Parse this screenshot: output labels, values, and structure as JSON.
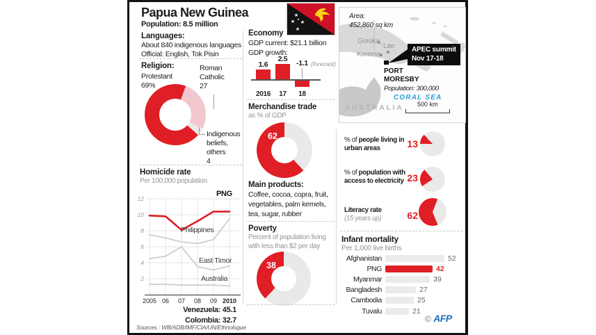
{
  "colors": {
    "red": "#e01e25",
    "pink": "#f2c7ce",
    "light": "#e9e9e9",
    "line_gray": "#cdcdcd",
    "grid": "#e3e3e3",
    "sea_blue": "#2ba0d8",
    "afp_blue": "#1a6fc4"
  },
  "header": {
    "title": "Papua New Guinea",
    "population": "Population: 8.5 million"
  },
  "languages": {
    "heading": "Languages:",
    "line1": "About 840 indigenous languages",
    "line2": "Official: English, Tok Pisin"
  },
  "religion": {
    "heading": "Religion:",
    "protestant": "Protestant",
    "protestant_value": "69%",
    "catholic": "Roman Catholic",
    "catholic_value": "27",
    "indigenous": "Indigenous beliefs, others",
    "indigenous_value": "4"
  },
  "economy": {
    "heading": "Economy",
    "gdp_current": "GDP current: $21.1 billion",
    "gdp_growth_label": "GDP growth:"
  },
  "main_products": {
    "heading": "Main products:",
    "text": "Coffee, cocoa, copra, fruit, vegetables, palm kernels, tea, sugar, rubber"
  },
  "map": {
    "area_label": "Area:",
    "area_value": "452,860 sq km",
    "city_goroka": "Goroka",
    "city_lae": "Lae",
    "city_kerema": "Kerema",
    "capital_line1": "PORT",
    "capital_line2": "MORESBY",
    "capital_population": "Population: 300,000",
    "callout_line1": "APEC summit",
    "callout_line2": "Nov 17-18",
    "sea": "CORAL SEA",
    "australia": "AUSTRALIA",
    "scale": "500 km"
  },
  "stats": [
    {
      "prefix": "% of ",
      "bold": "people living in urban areas",
      "value": "13"
    },
    {
      "prefix": "% of ",
      "bold": "population with access to electricity",
      "value": "23"
    },
    {
      "bold": "Literacy rate",
      "note": "(15 years up)",
      "value": "62"
    }
  ],
  "sources": "Sources : WB/ADB/IMF/CIA/UN/Ethnologue",
  "credit": {
    "copyright": "©",
    "brand": "AFP"
  },
  "chart_data": [
    {
      "id": "religion",
      "type": "pie",
      "labels": [
        "Protestant",
        "Roman Catholic",
        "Indigenous beliefs, others"
      ],
      "values": [
        69,
        27,
        4
      ]
    },
    {
      "id": "gdp_growth",
      "type": "bar",
      "categories": [
        "2016",
        "17",
        "18"
      ],
      "values": [
        1.6,
        2.5,
        -1.1
      ],
      "bar_labels": [
        "1.6",
        "2.5",
        "-1.1"
      ],
      "note": "(forecast)"
    },
    {
      "id": "homicide",
      "type": "line",
      "title": "Homicide rate",
      "subtitle": "Per 100,000 population",
      "x": [
        "2005",
        "06",
        "07",
        "08",
        "09",
        "2010"
      ],
      "ylim": [
        0,
        12
      ],
      "yticks": [
        2,
        4,
        6,
        8,
        10,
        12
      ],
      "series": [
        {
          "name": "PNG",
          "values": [
            9.9,
            9.8,
            8.1,
            9.2,
            10.4,
            10.4
          ],
          "color": "red"
        },
        {
          "name": "Philippines",
          "values": [
            7.5,
            7.1,
            6.6,
            6.4,
            6.9,
            9.5
          ],
          "color": "gray"
        },
        {
          "name": "East Timor",
          "values": [
            4.5,
            4.8,
            6.0,
            3.5,
            3.1,
            3.6
          ],
          "color": "gray"
        },
        {
          "name": "Australia",
          "values": [
            1.3,
            1.3,
            1.2,
            1.2,
            1.2,
            1.1
          ],
          "color": "gray"
        }
      ],
      "annotations": [
        "Venezuela: 45.1",
        "Colombia: 32.7"
      ]
    },
    {
      "id": "merchandise",
      "type": "donut",
      "title": "Merchandise trade",
      "subtitle": "as % of GDP",
      "value": 62
    },
    {
      "id": "poverty",
      "type": "donut",
      "title": "Poverty",
      "subtitle": "Percent of population living with less than $2 per day",
      "value": 38
    },
    {
      "id": "urban",
      "type": "pie",
      "value": 13
    },
    {
      "id": "electricity",
      "type": "pie",
      "value": 23
    },
    {
      "id": "literacy",
      "type": "pie",
      "value": 62
    },
    {
      "id": "infant_mortality",
      "type": "bar",
      "title": "Infant mortality",
      "subtitle": "Per 1,000 live births",
      "categories": [
        "Afghanistan",
        "PNG",
        "Myanmar",
        "Bangladesh",
        "Cambodia",
        "Tuvalu"
      ],
      "values": [
        52,
        42,
        39,
        27,
        25,
        21
      ],
      "highlight": "PNG"
    }
  ]
}
